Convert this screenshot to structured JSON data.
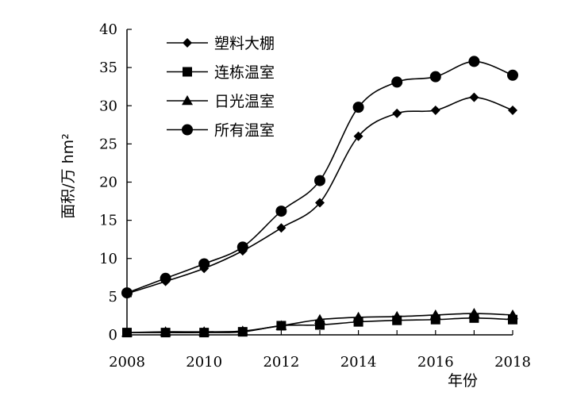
{
  "chart_data": {
    "type": "line",
    "title": "",
    "xlabel": "年份",
    "ylabel": "面积/万 hm²",
    "x": [
      2008,
      2009,
      2010,
      2011,
      2012,
      2013,
      2014,
      2015,
      2016,
      2017,
      2018
    ],
    "xticks": [
      2008,
      2010,
      2012,
      2014,
      2016,
      2018
    ],
    "yticks": [
      0,
      5,
      10,
      15,
      20,
      25,
      30,
      35,
      40
    ],
    "xlim": [
      2008,
      2018
    ],
    "ylim": [
      0,
      40
    ],
    "grid": false,
    "legend_position": "top-left",
    "series": [
      {
        "name": "塑料大棚",
        "marker": "diamond",
        "values": [
          5.4,
          7.0,
          8.7,
          11.0,
          14.0,
          17.3,
          26.0,
          29.0,
          29.4,
          31.1,
          29.4
        ]
      },
      {
        "name": "连栋温室",
        "marker": "square",
        "values": [
          0.3,
          0.3,
          0.3,
          0.4,
          1.2,
          1.3,
          1.7,
          1.9,
          2.0,
          2.2,
          2.0
        ]
      },
      {
        "name": "日光温室",
        "marker": "triangle",
        "values": [
          0.3,
          0.4,
          0.4,
          0.5,
          1.2,
          2.0,
          2.3,
          2.4,
          2.6,
          2.8,
          2.6
        ]
      },
      {
        "name": "所有温室",
        "marker": "circle",
        "values": [
          5.5,
          7.4,
          9.3,
          11.5,
          16.2,
          20.2,
          29.8,
          33.1,
          33.8,
          35.8,
          34.0
        ]
      }
    ]
  }
}
